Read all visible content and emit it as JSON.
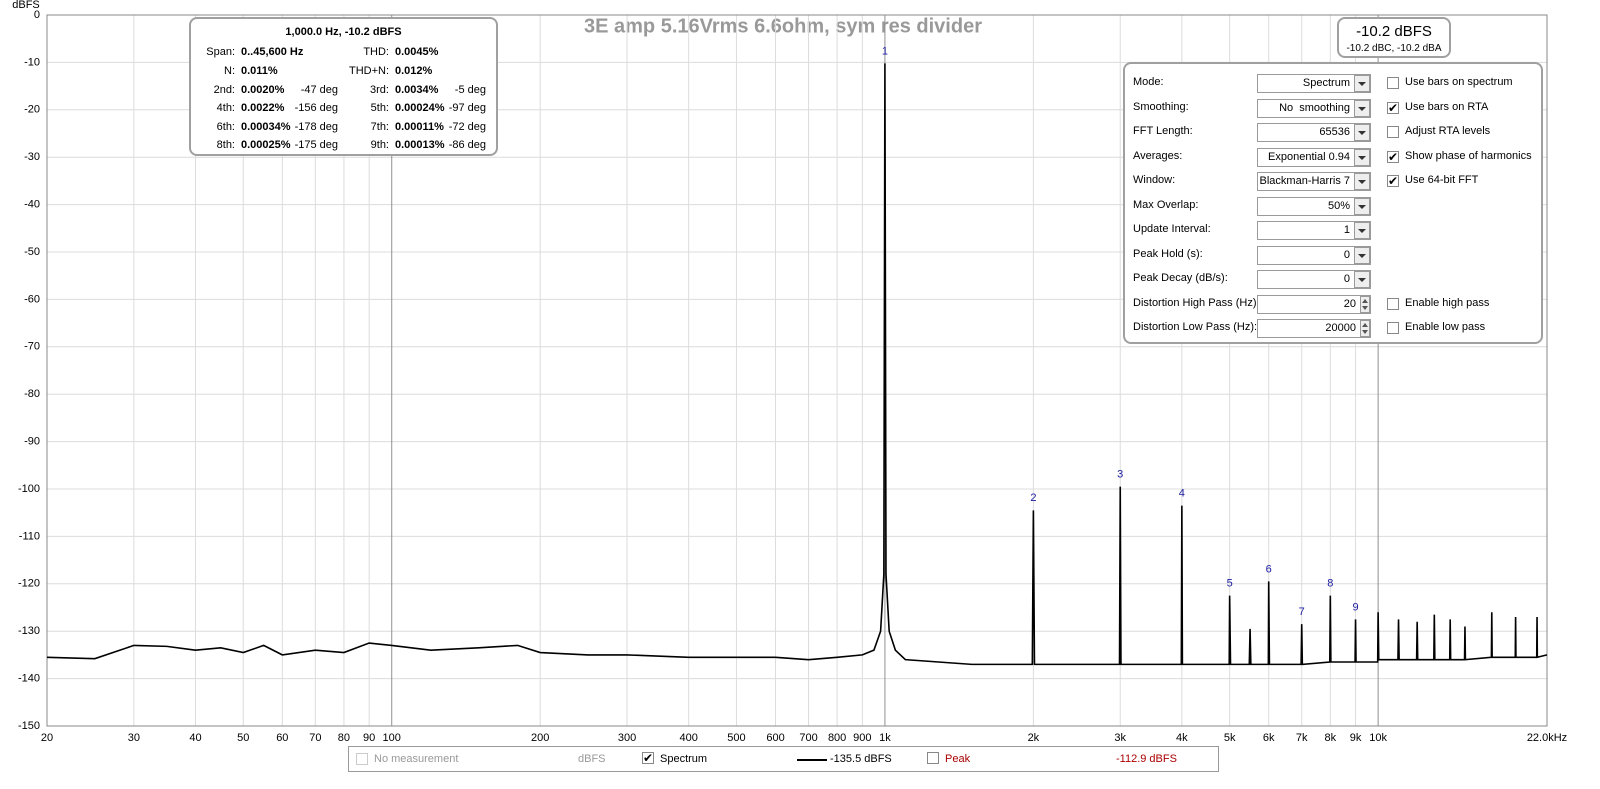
{
  "chart_data": {
    "type": "line",
    "title": "3E amp 5.16Vrms 6.6ohm, sym res divider",
    "y_label": "dBFS",
    "x_scale": "log",
    "xlim": [
      20,
      22000
    ],
    "ylim": [
      -150,
      0
    ],
    "xticks": [
      20,
      30,
      40,
      50,
      60,
      70,
      80,
      90,
      100,
      200,
      300,
      400,
      500,
      600,
      700,
      800,
      900,
      {
        "value": 1000,
        "label": "1k"
      },
      {
        "value": 2000,
        "label": "2k"
      },
      {
        "value": 3000,
        "label": "3k"
      },
      {
        "value": 4000,
        "label": "4k"
      },
      {
        "value": 5000,
        "label": "5k"
      },
      {
        "value": 6000,
        "label": "6k"
      },
      {
        "value": 7000,
        "label": "7k"
      },
      {
        "value": 8000,
        "label": "8k"
      },
      {
        "value": 9000,
        "label": "9k"
      },
      {
        "value": 10000,
        "label": "10k"
      },
      {
        "value": 22000,
        "label": "22.0kHz"
      }
    ],
    "yticks": [
      0,
      -10,
      -20,
      -30,
      -40,
      -50,
      -60,
      -70,
      -80,
      -90,
      -100,
      -110,
      -120,
      -130,
      -140,
      -150
    ],
    "grid": true,
    "series": [
      {
        "name": "Spectrum",
        "color": "#000000",
        "x": [
          20,
          25,
          30,
          35,
          40,
          45,
          50,
          55,
          60,
          70,
          80,
          90,
          100,
          120,
          150,
          180,
          200,
          250,
          300,
          400,
          500,
          600,
          700,
          800,
          900,
          950,
          980,
          995,
          1000,
          1005,
          1020,
          1050,
          1100,
          1500,
          1990,
          2000,
          2010,
          2990,
          3000,
          3010,
          3990,
          4000,
          4010,
          4990,
          5000,
          5020,
          5480,
          5500,
          5520,
          5990,
          6000,
          6020,
          6980,
          7000,
          7020,
          7980,
          8000,
          8020,
          8980,
          9000,
          9020,
          9980,
          10000,
          10030,
          10970,
          11000,
          11030,
          11970,
          12000,
          12030,
          12970,
          13000,
          13030,
          13970,
          14000,
          14030,
          14970,
          15000,
          15030,
          16970,
          17000,
          17030,
          18970,
          19000,
          19030,
          20970,
          21000,
          21030,
          22000
        ],
        "values": [
          -135.5,
          -135.8,
          -133,
          -133.2,
          -134,
          -133.5,
          -134.5,
          -133,
          -135,
          -134,
          -134.5,
          -132.5,
          -133,
          -134,
          -133.5,
          -133,
          -134.5,
          -135,
          -135,
          -135.5,
          -135.5,
          -135.5,
          -136,
          -135.5,
          -135,
          -134,
          -130,
          -118,
          -10.2,
          -118,
          -130,
          -134,
          -136,
          -137,
          -137,
          -104.5,
          -137,
          -137,
          -99.5,
          -137,
          -137,
          -103.5,
          -137,
          -137,
          -122.5,
          -137,
          -137,
          -129.5,
          -137,
          -137,
          -119.5,
          -137,
          -137,
          -128.5,
          -137,
          -136.5,
          -122.5,
          -136.5,
          -136.5,
          -127.5,
          -136.5,
          -136.5,
          -126,
          -136,
          -136,
          -127.5,
          -136,
          -136,
          -128,
          -136,
          -136,
          -126.5,
          -136,
          -136,
          -127.5,
          -136,
          -136,
          -129,
          -136,
          -135.5,
          -126,
          -135.5,
          -135.5,
          -127,
          -135.5,
          -135.5,
          -127,
          -135.5,
          -135
        ]
      }
    ],
    "harmonic_label_color": "#1a1aa0",
    "harmonics": [
      {
        "label": "1",
        "x": 1000,
        "value": -10.2
      },
      {
        "label": "2",
        "x": 2000,
        "value": -104.5
      },
      {
        "label": "3",
        "x": 3000,
        "value": -99.5
      },
      {
        "label": "4",
        "x": 4000,
        "value": -103.5
      },
      {
        "label": "5",
        "x": 5000,
        "value": -122.5
      },
      {
        "label": "6",
        "x": 6000,
        "value": -119.5
      },
      {
        "label": "7",
        "x": 7000,
        "value": -128.5
      },
      {
        "label": "8",
        "x": 8000,
        "value": -122.5
      },
      {
        "label": "9",
        "x": 9000,
        "value": -127.5
      }
    ]
  },
  "distortion_panel": {
    "title": "1,000.0 Hz, -10.2 dBFS",
    "rows": [
      [
        "Span:",
        "0..45,600 Hz",
        "THD:",
        "0.0045%"
      ],
      [
        "N:",
        "0.011%",
        "THD+N:",
        "0.012%"
      ],
      [
        "2nd:",
        "0.0020%",
        "-47 deg",
        "3rd:",
        "0.0034%",
        "-5 deg"
      ],
      [
        "4th:",
        "0.0022%",
        "-156 deg",
        "5th:",
        "0.00024%",
        "-97 deg"
      ],
      [
        "6th:",
        "0.00034%",
        "-178 deg",
        "7th:",
        "0.00011%",
        "-72 deg"
      ],
      [
        "8th:",
        "0.00025%",
        "-175 deg",
        "9th:",
        "0.00013%",
        "-86 deg"
      ]
    ]
  },
  "readout": {
    "level": "-10.2 dBFS",
    "weighted": "-10.2 dBC, -10.2 dBA"
  },
  "controls": [
    {
      "label": "Mode:",
      "value": "Spectrum",
      "kind": "dropdown",
      "checkbox": {
        "label": "Use bars on spectrum",
        "checked": false
      }
    },
    {
      "label": "Smoothing:",
      "value": "No  smoothing",
      "kind": "dropdown",
      "checkbox": {
        "label": "Use bars on RTA",
        "checked": true
      }
    },
    {
      "label": "FFT Length:",
      "value": "65536",
      "kind": "dropdown",
      "checkbox": {
        "label": "Adjust RTA levels",
        "checked": false
      }
    },
    {
      "label": "Averages:",
      "value": "Exponential 0.94",
      "kind": "dropdown",
      "checkbox": {
        "label": "Show phase of harmonics",
        "checked": true
      }
    },
    {
      "label": "Window:",
      "value": "Blackman-Harris 7",
      "kind": "dropdown",
      "checkbox": {
        "label": "Use 64-bit FFT",
        "checked": true
      }
    },
    {
      "label": "Max Overlap:",
      "value": "50%",
      "kind": "dropdown"
    },
    {
      "label": "Update Interval:",
      "value": "1",
      "kind": "dropdown"
    },
    {
      "label": "Peak Hold (s):",
      "value": "0",
      "kind": "dropdown"
    },
    {
      "label": "Peak Decay (dB/s):",
      "value": "0",
      "kind": "dropdown"
    },
    {
      "label": "Distortion High Pass (Hz):",
      "value": "20",
      "kind": "spinner",
      "checkbox": {
        "label": "Enable high pass",
        "checked": false
      }
    },
    {
      "label": "Distortion Low Pass (Hz):",
      "value": "20000",
      "kind": "spinner",
      "checkbox": {
        "label": "Enable low pass",
        "checked": false
      }
    }
  ],
  "legend_bar": {
    "measurement": "No measurement",
    "unit": "dBFS",
    "spectrum_level": "-135.5 dBFS",
    "peak_name": "Peak",
    "peak_level": "-112.9 dBFS",
    "spectrum_checked": true,
    "peak_checked": false
  }
}
